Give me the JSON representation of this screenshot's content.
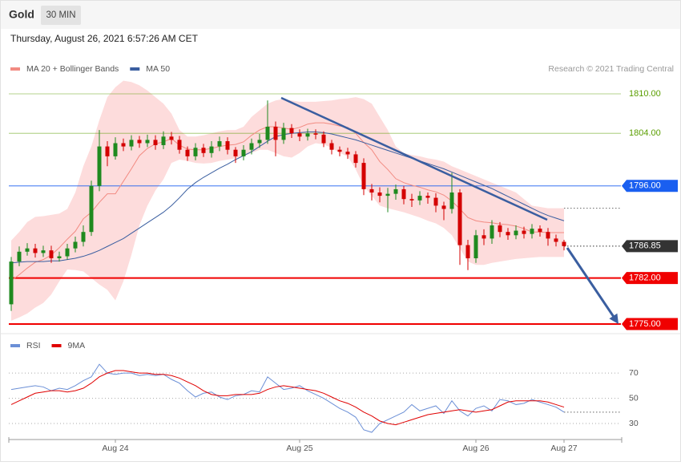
{
  "header": {
    "title": "Gold",
    "interval": "30 MIN",
    "datetime": "Thursday, August 26, 2021 6:57:26 AM CET",
    "credit": "Research © 2021 Trading Central"
  },
  "chart_data": [
    {
      "type": "candlestick",
      "ylim": [
        1774,
        1812
      ],
      "up_color": "#1f8a1f",
      "down_color": "#d40000",
      "open": [
        1778,
        1784.5,
        1786.0,
        1786.5,
        1785.8,
        1786.2,
        1785.0,
        1785.3,
        1786.5,
        1787.5,
        1789.0,
        1796.0,
        1802.0,
        1800.5,
        1802.5,
        1802.0,
        1803.0,
        1802.5,
        1803.0,
        1802.2,
        1803.5,
        1803.0,
        1801.5,
        1800.5,
        1801.8,
        1801.0,
        1802.0,
        1802.8,
        1801.5,
        1800.5,
        1801.5,
        1802.5,
        1803.0,
        1805.0,
        1803.0,
        1804.8,
        1804.0,
        1803.5,
        1804.0,
        1803.8,
        1802.5,
        1801.5,
        1801.2,
        1800.8,
        1799.5,
        1795.5,
        1795.0,
        1794.5,
        1794.8,
        1795.5,
        1794.0,
        1793.8,
        1794.5,
        1794.2,
        1793.0,
        1792.5,
        1795.0,
        1787.0,
        1785.0,
        1788.5,
        1788.0,
        1790.0,
        1789.0,
        1788.5,
        1789.2,
        1788.7,
        1789.5,
        1789.0,
        1788.0,
        1787.5
      ],
      "high": [
        1785.2,
        1786.8,
        1787.3,
        1787.2,
        1786.9,
        1786.9,
        1786.0,
        1787.2,
        1788.3,
        1790.0,
        1796.8,
        1804.5,
        1802.8,
        1803.4,
        1803.2,
        1803.7,
        1803.6,
        1803.8,
        1803.7,
        1804.3,
        1804.2,
        1803.6,
        1802.0,
        1802.5,
        1802.4,
        1802.8,
        1803.5,
        1803.4,
        1801.9,
        1802.2,
        1803.2,
        1803.9,
        1809.0,
        1805.8,
        1805.6,
        1805.4,
        1804.6,
        1804.7,
        1804.6,
        1804.3,
        1803.0,
        1802.0,
        1801.8,
        1801.3,
        1800.2,
        1796.3,
        1795.8,
        1795.7,
        1796.2,
        1796.0,
        1794.8,
        1795.2,
        1795.0,
        1794.9,
        1793.6,
        1798.0,
        1795.5,
        1787.8,
        1789.3,
        1789.4,
        1790.8,
        1790.5,
        1789.6,
        1790.0,
        1789.8,
        1790.2,
        1790.0,
        1789.6,
        1788.6,
        1787.8
      ],
      "low": [
        1777.0,
        1783.8,
        1785.4,
        1785.1,
        1785.2,
        1784.3,
        1784.5,
        1784.8,
        1785.9,
        1786.8,
        1788.4,
        1795.2,
        1799.0,
        1800.0,
        1801.3,
        1801.4,
        1801.8,
        1801.9,
        1801.5,
        1801.6,
        1802.3,
        1800.9,
        1799.8,
        1799.9,
        1800.4,
        1800.3,
        1801.3,
        1800.8,
        1799.5,
        1799.9,
        1800.8,
        1801.8,
        1802.4,
        1800.5,
        1802.4,
        1803.3,
        1802.8,
        1802.9,
        1803.1,
        1801.9,
        1800.8,
        1800.5,
        1800.1,
        1798.8,
        1794.6,
        1793.8,
        1793.5,
        1792.0,
        1793.9,
        1793.2,
        1792.8,
        1793.1,
        1793.3,
        1792.0,
        1790.8,
        1791.8,
        1784.0,
        1783.2,
        1784.3,
        1787.0,
        1787.2,
        1788.2,
        1787.8,
        1787.9,
        1788.0,
        1788.0,
        1788.3,
        1786.9,
        1786.8,
        1786.2
      ],
      "close": [
        1784.5,
        1786.0,
        1786.5,
        1785.8,
        1786.2,
        1785.0,
        1785.3,
        1786.5,
        1787.5,
        1789.0,
        1796.0,
        1802.0,
        1800.5,
        1802.5,
        1802.0,
        1803.0,
        1802.5,
        1803.0,
        1802.2,
        1803.5,
        1803.0,
        1801.5,
        1800.5,
        1801.8,
        1801.0,
        1802.0,
        1802.8,
        1801.5,
        1800.5,
        1801.5,
        1802.5,
        1803.0,
        1805.0,
        1803.0,
        1804.8,
        1804.0,
        1803.5,
        1804.0,
        1803.8,
        1802.5,
        1801.5,
        1801.2,
        1800.8,
        1799.5,
        1795.5,
        1795.0,
        1794.5,
        1794.8,
        1795.5,
        1794.0,
        1793.8,
        1794.5,
        1794.2,
        1793.0,
        1792.5,
        1795.0,
        1787.0,
        1785.0,
        1788.5,
        1788.0,
        1790.0,
        1789.0,
        1788.5,
        1789.2,
        1788.7,
        1789.5,
        1789.0,
        1788.0,
        1787.5,
        1786.85
      ],
      "series": [
        {
          "name": "MA 20 + Bollinger Bands",
          "color": "#f28b82",
          "band_color": "#fddcdc",
          "values": [
            1781.6,
            1782.5,
            1783.5,
            1784.4,
            1784.8,
            1785.5,
            1786.6,
            1787.9,
            1789.1,
            1791,
            1792,
            1793.5,
            1794.8,
            1794.8,
            1796.7,
            1798.6,
            1800.6,
            1801.7,
            1802.4,
            1802.7,
            1803.2,
            1802.2,
            1801.6,
            1801.5,
            1801.5,
            1801.7,
            1802,
            1802.2,
            1802.3,
            1802.7,
            1803.7,
            1804.5,
            1805,
            1805,
            1804.8,
            1804.6,
            1804.9,
            1805.4,
            1805.6,
            1805.6,
            1805.4,
            1805.1,
            1804.9,
            1804,
            1802.6,
            1801.5,
            1799.7,
            1798.5,
            1797.1,
            1796.5,
            1796.1,
            1795.8,
            1795.4,
            1795.1,
            1794.6,
            1793.7,
            1792.5,
            1791.2,
            1790.7,
            1790.5,
            1790.4,
            1790.2,
            1790.1,
            1789.9,
            1789.5,
            1789,
            1789,
            1788.9,
            1788.9,
            1788.9
          ],
          "upper": [
            1787.7,
            1789,
            1790.5,
            1791.3,
            1791.4,
            1791.6,
            1791.8,
            1792.5,
            1795,
            1799,
            1802,
            1806,
            1809.5,
            1811,
            1812,
            1811.8,
            1811.3,
            1810.5,
            1809.5,
            1808.5,
            1807,
            1804.5,
            1803.5,
            1803.5,
            1803.7,
            1804,
            1804.3,
            1804.5,
            1804.5,
            1805,
            1806.5,
            1807.5,
            1808.5,
            1809,
            1809.2,
            1809,
            1808.8,
            1808.8,
            1808.8,
            1808.9,
            1809,
            1809.2,
            1809.3,
            1809.5,
            1809.2,
            1808.5,
            1806.5,
            1804.5,
            1802,
            1801,
            1800.7,
            1800.5,
            1800.2,
            1800,
            1799.7,
            1799,
            1798.5,
            1798,
            1797.5,
            1797,
            1796.5,
            1796,
            1795.5,
            1795,
            1794,
            1793,
            1792.8,
            1792.6,
            1792.6,
            1792.6
          ],
          "lower": [
            1775.5,
            1776,
            1776.6,
            1777.5,
            1778.2,
            1779.5,
            1781.5,
            1783.3,
            1783.2,
            1783,
            1782,
            1781,
            1780.2,
            1778.6,
            1781.5,
            1785.5,
            1790,
            1793,
            1795.3,
            1797,
            1799.5,
            1800,
            1799.8,
            1799.5,
            1799.4,
            1799.5,
            1799.8,
            1800,
            1800.2,
            1800.5,
            1801,
            1801.5,
            1801.5,
            1801,
            1800.5,
            1800.3,
            1801,
            1802,
            1802.5,
            1802.3,
            1801.8,
            1801,
            1800.5,
            1798.5,
            1796,
            1794.5,
            1793,
            1792.6,
            1792.3,
            1792,
            1791.6,
            1791.2,
            1790.7,
            1790.3,
            1789.6,
            1788.5,
            1786.5,
            1784.5,
            1784,
            1784,
            1784.3,
            1784.5,
            1784.7,
            1784.9,
            1785,
            1785.1,
            1785.2,
            1785.2,
            1785.2,
            1785.2
          ]
        },
        {
          "name": "MA 50",
          "color": "#3a5ea0",
          "values": [
            1784.3,
            1784.4,
            1784.5,
            1784.5,
            1784.5,
            1784.6,
            1784.6,
            1784.8,
            1785,
            1785.3,
            1785.7,
            1786.2,
            1786.8,
            1787.4,
            1788,
            1788.8,
            1789.6,
            1790.4,
            1791.2,
            1792,
            1793,
            1794.2,
            1795.5,
            1796.5,
            1797.3,
            1798,
            1798.7,
            1799.3,
            1800,
            1800.6,
            1801.2,
            1802,
            1802.8,
            1803.5,
            1803.8,
            1804,
            1804.1,
            1804.2,
            1804.2,
            1804.1,
            1803.9,
            1803.6,
            1803.3,
            1803,
            1802.6,
            1802.2,
            1801.8,
            1801.4,
            1801,
            1800.6,
            1800.2,
            1799.8,
            1799.4,
            1799,
            1798.6,
            1798.1,
            1797.6,
            1797.1,
            1796.6,
            1796.1,
            1795.6,
            1795,
            1794.4,
            1793.8,
            1793.2,
            1792.6,
            1792,
            1791.5,
            1791.1,
            1790.7
          ]
        }
      ],
      "levels": [
        {
          "value": 1810,
          "label": "1810.00",
          "color": "#5a9e00",
          "style": "plain"
        },
        {
          "value": 1804,
          "label": "1804.00",
          "color": "#5a9e00",
          "style": "plain"
        },
        {
          "value": 1796,
          "label": "1796.00",
          "color": "#1a5ff0",
          "style": "box"
        },
        {
          "value": 1786.85,
          "label": "1786.85",
          "color": "#333333",
          "style": "current"
        },
        {
          "value": 1782,
          "label": "1782.00",
          "color": "#f00000",
          "style": "box-bold"
        },
        {
          "value": 1775,
          "label": "1775.00",
          "color": "#f00000",
          "style": "box-bold"
        }
      ]
    },
    {
      "type": "line",
      "ylim": [
        16,
        86
      ],
      "yticks": [
        30,
        50,
        70
      ],
      "grid": true,
      "categories": [
        null,
        null,
        null,
        null,
        null,
        null,
        null,
        null,
        null,
        null,
        null,
        null,
        null,
        "Aug 24",
        null,
        null,
        null,
        null,
        null,
        null,
        null,
        null,
        null,
        null,
        null,
        null,
        null,
        null,
        null,
        null,
        null,
        null,
        null,
        null,
        null,
        null,
        "Aug 25",
        null,
        null,
        null,
        null,
        null,
        null,
        null,
        null,
        null,
        null,
        null,
        null,
        null,
        null,
        null,
        null,
        null,
        null,
        null,
        null,
        null,
        "Aug 26",
        null,
        null,
        null,
        null,
        null,
        null,
        null,
        null,
        null,
        null,
        "Aug 27"
      ],
      "series": [
        {
          "name": "RSI",
          "color": "#6b8fd6",
          "values": [
            57,
            58,
            59,
            60,
            59,
            56,
            58,
            57,
            60,
            64,
            67,
            77,
            70,
            69,
            70,
            70,
            68,
            69,
            68,
            69,
            65,
            62,
            56,
            51,
            54,
            55,
            51,
            49,
            52,
            53,
            56,
            55,
            67,
            62,
            57,
            58,
            60,
            56,
            53,
            50,
            46,
            42,
            39,
            35,
            25,
            23,
            30,
            33,
            36,
            39,
            45,
            40,
            42,
            44,
            38,
            48,
            40,
            36,
            42,
            44,
            40,
            49,
            48,
            45,
            46,
            49,
            47,
            45,
            43,
            39
          ]
        },
        {
          "name": "9MA",
          "color": "#e00000",
          "values": [
            45,
            48,
            51,
            54,
            55,
            56,
            56,
            55,
            56,
            58,
            62,
            67,
            70,
            72,
            72,
            71,
            70,
            70,
            69,
            69,
            68,
            66,
            63,
            60,
            56,
            53,
            52,
            52,
            53,
            53,
            53,
            54,
            57,
            59,
            60,
            59,
            58,
            57,
            56,
            54,
            51,
            48,
            46,
            43,
            39,
            36,
            32,
            30,
            29,
            31,
            33,
            35,
            37,
            38,
            39,
            40,
            41,
            40,
            39,
            40,
            41,
            44,
            47,
            48,
            48,
            48,
            48,
            47,
            45,
            43
          ]
        }
      ]
    }
  ]
}
